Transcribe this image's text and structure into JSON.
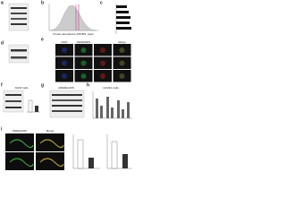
{
  "panels": [
    {
      "letter": "a"
    },
    {
      "letter": "b",
      "xlabel": "Protein abundance (MS/MS, log2)"
    },
    {
      "letter": "c"
    },
    {
      "letter": "d"
    },
    {
      "letter": "e",
      "columns": [
        "DAPI",
        "PEREGRIN",
        "",
        "Merge"
      ]
    },
    {
      "letter": "f",
      "label": "SNAP cells"
    },
    {
      "letter": "g",
      "label": "siPEREGRIN"
    },
    {
      "letter": "h",
      "label": "HUVEC cells"
    },
    {
      "letter": "i",
      "columns": [
        "PEREGRIN",
        "Merge"
      ]
    }
  ]
}
